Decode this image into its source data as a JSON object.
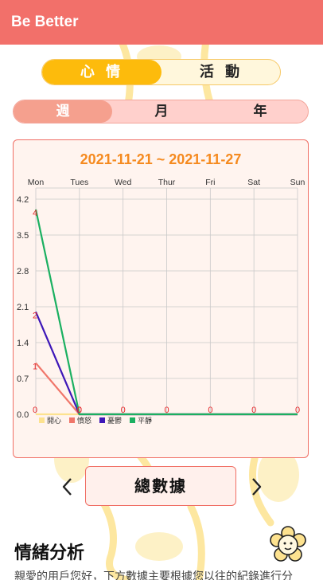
{
  "app": {
    "title": "Be Better"
  },
  "mode_tabs": [
    {
      "label": "心 情",
      "selected": true
    },
    {
      "label": "活 動",
      "selected": false
    }
  ],
  "period_tabs": [
    {
      "label": "週",
      "selected": true
    },
    {
      "label": "月",
      "selected": false
    },
    {
      "label": "年",
      "selected": false
    }
  ],
  "colors": {
    "appbar": "#f2706a",
    "accent_yellow": "#fdbb0c",
    "accent_salmon": "#f5a08e",
    "title_orange": "#f58a1f"
  },
  "chart_data": {
    "type": "line",
    "title": "2021-11-21 ~ 2021-11-27",
    "categories": [
      "Mon",
      "Tues",
      "Wed",
      "Thur",
      "Fri",
      "Sat",
      "Sun"
    ],
    "ylim": [
      0,
      4.2
    ],
    "yticks": [
      "0.0",
      "0.7",
      "1.4",
      "2.1",
      "2.8",
      "3.5",
      "4.2"
    ],
    "grid": true,
    "legend": "bottom-left",
    "series": [
      {
        "name": "開心",
        "color": "#fde28f",
        "values": [
          0,
          0,
          0,
          0,
          0,
          0,
          0
        ]
      },
      {
        "name": "憤怒",
        "color": "#f0766a",
        "values": [
          1,
          0,
          0,
          0,
          0,
          0,
          0
        ]
      },
      {
        "name": "憂鬱",
        "color": "#3d17b8",
        "values": [
          2,
          0,
          0,
          0,
          0,
          0,
          0
        ]
      },
      {
        "name": "平靜",
        "color": "#1bb061",
        "values": [
          4,
          0,
          0,
          0,
          0,
          0,
          0
        ]
      }
    ],
    "point_labels": [
      "4",
      "2",
      "1",
      "0",
      "0",
      "0",
      "0",
      "0",
      "0",
      "0"
    ],
    "label_color": "#e6292c"
  },
  "nav": {
    "total_label": "總數據",
    "prev_icon": "chevron-left-icon",
    "next_icon": "chevron-right-icon"
  },
  "analysis": {
    "title": "情緒分析",
    "text": "親愛的用戶您好，下方數據主要根據您以往的紀錄進行分",
    "fab_icon": "flower-character-icon"
  }
}
